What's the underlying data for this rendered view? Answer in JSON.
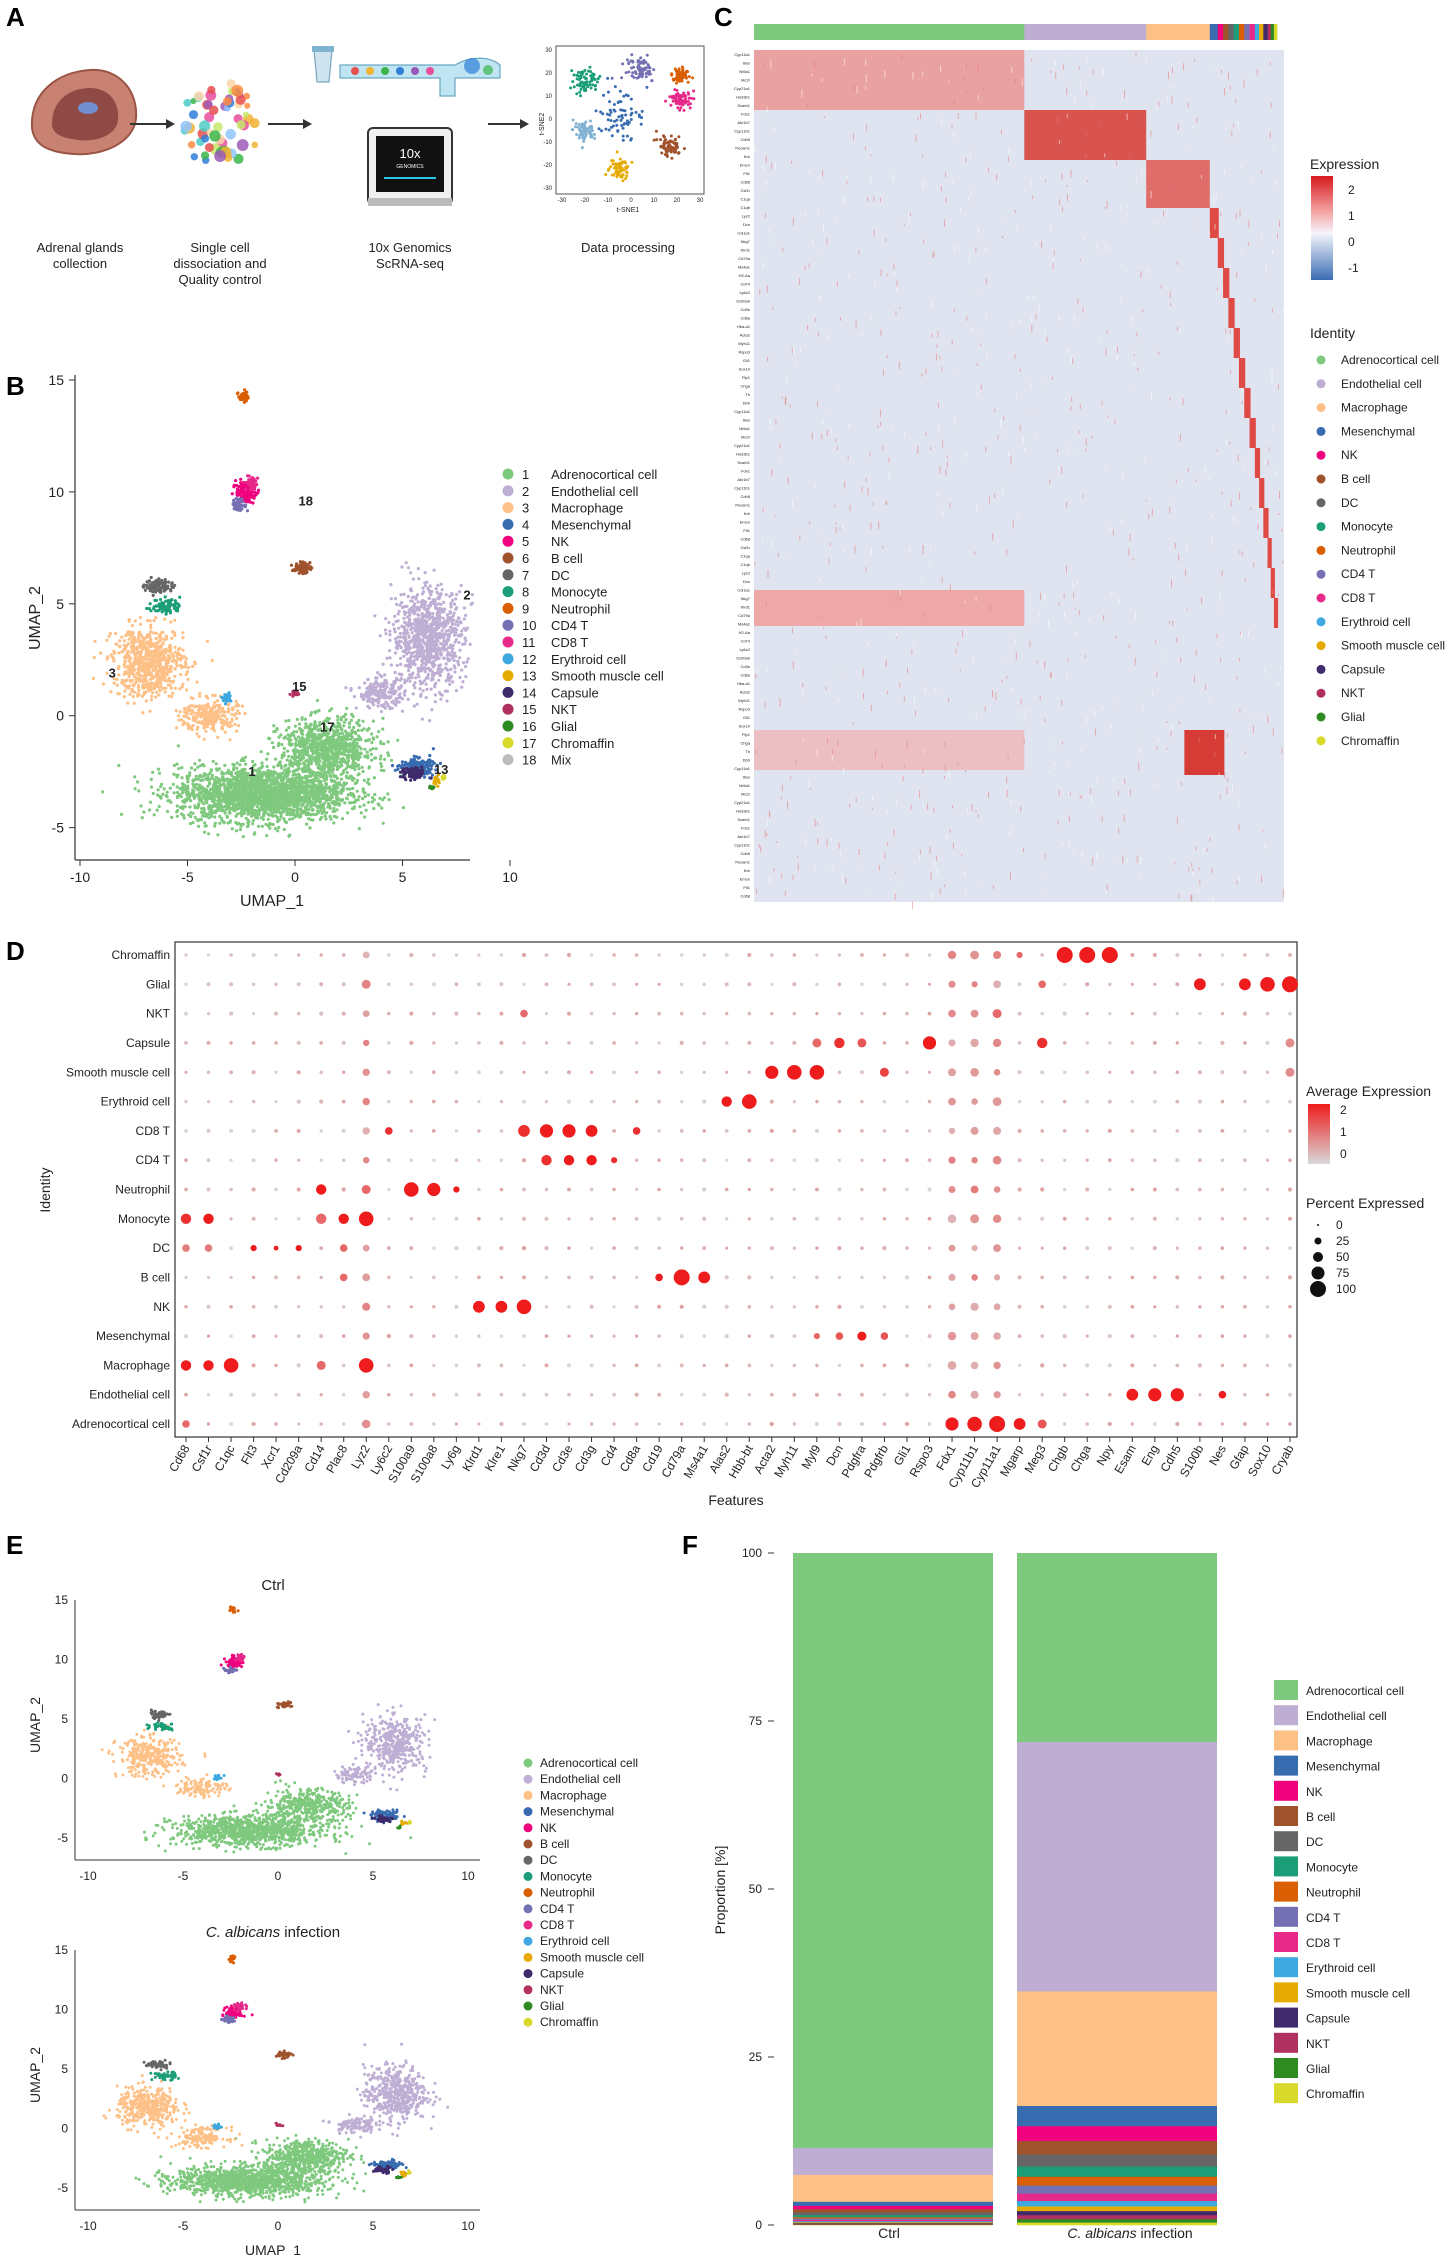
{
  "panels": {
    "A": {
      "label": "A",
      "steps": [
        {
          "line1": "Adrenal glands",
          "line2": "collection"
        },
        {
          "line1": "Single cell",
          "line2": "dissociation and",
          "line3": "Quality control"
        },
        {
          "line1": "10x Genomics",
          "line2": "ScRNA-seq"
        },
        {
          "line1": "Data processing"
        }
      ],
      "chip_text": "10x",
      "chip_sub": "GENOMICS",
      "tsne_xlabel": "t-SNE1",
      "tsne_ylabel": "t-SNE2",
      "tsne_xticks": [
        "-30",
        "-20",
        "-10",
        "0",
        "10",
        "20",
        "30"
      ],
      "tsne_yticks": [
        "30",
        "20",
        "10",
        "0",
        "-10",
        "-20",
        "-30"
      ]
    },
    "B": {
      "label": "B",
      "xlabel": "UMAP_1",
      "ylabel": "UMAP_2",
      "xticks": [
        "-10",
        "-5",
        "0",
        "5",
        "10"
      ],
      "yticks": [
        "15",
        "10",
        "5",
        "0",
        "-5"
      ],
      "cluster_labels": [
        "1",
        "2",
        "3",
        "13",
        "15",
        "17",
        "18"
      ],
      "legend": [
        {
          "num": "1",
          "name": "Adrenocortical cell",
          "color": "#7FC97F"
        },
        {
          "num": "2",
          "name": "Endothelial cell",
          "color": "#BEAED4"
        },
        {
          "num": "3",
          "name": "Macrophage",
          "color": "#FDC086"
        },
        {
          "num": "4",
          "name": "Mesenchymal",
          "color": "#386CB0"
        },
        {
          "num": "5",
          "name": "NK",
          "color": "#F0027F"
        },
        {
          "num": "6",
          "name": "B cell",
          "color": "#A0522D"
        },
        {
          "num": "7",
          "name": "DC",
          "color": "#666666"
        },
        {
          "num": "8",
          "name": "Monocyte",
          "color": "#1B9E77"
        },
        {
          "num": "9",
          "name": "Neutrophil",
          "color": "#D95F02"
        },
        {
          "num": "10",
          "name": "CD4 T",
          "color": "#7570B3"
        },
        {
          "num": "11",
          "name": "CD8 T",
          "color": "#E7298A"
        },
        {
          "num": "12",
          "name": "Erythroid cell",
          "color": "#3DA9E0"
        },
        {
          "num": "13",
          "name": "Smooth muscle cell",
          "color": "#E6AB02"
        },
        {
          "num": "14",
          "name": "Capsule",
          "color": "#3F2A6B"
        },
        {
          "num": "15",
          "name": "NKT",
          "color": "#B03060"
        },
        {
          "num": "16",
          "name": "Glial",
          "color": "#2E8B22"
        },
        {
          "num": "17",
          "name": "Chromaffin",
          "color": "#D9D92B"
        },
        {
          "num": "18",
          "name": "Mix",
          "color": "#BBBBBB"
        }
      ]
    },
    "C": {
      "label": "C",
      "legend_title": "Expression",
      "scale_ticks": [
        "2",
        "1",
        "0",
        "-1"
      ],
      "identity_title": "Identity",
      "identity": [
        {
          "name": "Adrenocortical cell",
          "color": "#7FC97F"
        },
        {
          "name": "Endothelial cell",
          "color": "#BEAED4"
        },
        {
          "name": "Macrophage",
          "color": "#FDC086"
        },
        {
          "name": "Mesenchymal",
          "color": "#386CB0"
        },
        {
          "name": "NK",
          "color": "#F0027F"
        },
        {
          "name": "B cell",
          "color": "#A0522D"
        },
        {
          "name": "DC",
          "color": "#666666"
        },
        {
          "name": "Monocyte",
          "color": "#1B9E77"
        },
        {
          "name": "Neutrophil",
          "color": "#D95F02"
        },
        {
          "name": "CD4 T",
          "color": "#7570B3"
        },
        {
          "name": "CD8 T",
          "color": "#E7298A"
        },
        {
          "name": "Erythroid cell",
          "color": "#3DA9E0"
        },
        {
          "name": "Smooth muscle cell",
          "color": "#E6AB02"
        },
        {
          "name": "Capsule",
          "color": "#3F2A6B"
        },
        {
          "name": "NKT",
          "color": "#B03060"
        },
        {
          "name": "Glial",
          "color": "#2E8B22"
        },
        {
          "name": "Chromaffin",
          "color": "#D9D92B"
        }
      ]
    },
    "D": {
      "label": "D",
      "xlabel": "Features",
      "ylabel": "Identity",
      "features": [
        "Cd68",
        "Csf1r",
        "C1qc",
        "Flt3",
        "Xcr1",
        "Cd209a",
        "Cd14",
        "Plac8",
        "Lyz2",
        "Ly6c2",
        "S100a9",
        "S100a8",
        "Ly6g",
        "Klrd1",
        "Klre1",
        "Nkg7",
        "Cd3d",
        "Cd3e",
        "Cd3g",
        "Cd4",
        "Cd8a",
        "Cd19",
        "Cd79a",
        "Ms4a1",
        "Alas2",
        "Hbb-bt",
        "Acta2",
        "Myh11",
        "Myl9",
        "Dcn",
        "Pdgfra",
        "Pdgfrb",
        "Gli1",
        "Rspo3",
        "Fdx1",
        "Cyp11b1",
        "Cyp11a1",
        "Mgarp",
        "Meg3",
        "Chgb",
        "Chga",
        "Npy",
        "Esam",
        "Eng",
        "Cdh5",
        "S100b",
        "Nes",
        "Gfap",
        "Sox10",
        "Cryab"
      ],
      "identities": [
        "Chromaffin",
        "Glial",
        "NKT",
        "Capsule",
        "Smooth muscle cell",
        "Erythroid cell",
        "CD8 T",
        "CD4 T",
        "Neutrophil",
        "Monocyte",
        "DC",
        "B cell",
        "NK",
        "Mesenchymal",
        "Macrophage",
        "Endothelial cell",
        "Adrenocortical cell"
      ],
      "avg_title": "Average Expression",
      "avg_ticks": [
        "2",
        "1",
        "0"
      ],
      "pct_title": "Percent Expressed",
      "pct_ticks": [
        "0",
        "25",
        "50",
        "75",
        "100"
      ]
    },
    "E": {
      "label": "E",
      "top_title": "Ctrl",
      "bottom_title_italic": "C. albicans",
      "bottom_title_rest": " infection",
      "xlabel": "UMAP_1",
      "ylabel": "UMAP_2",
      "xticks": [
        "-10",
        "-5",
        "0",
        "5",
        "10"
      ],
      "yticks": [
        "15",
        "10",
        "5",
        "0",
        "-5"
      ],
      "legend": [
        {
          "name": "Adrenocortical cell",
          "color": "#7FC97F"
        },
        {
          "name": "Endothelial cell",
          "color": "#BEAED4"
        },
        {
          "name": "Macrophage",
          "color": "#FDC086"
        },
        {
          "name": "Mesenchymal",
          "color": "#386CB0"
        },
        {
          "name": "NK",
          "color": "#F0027F"
        },
        {
          "name": "B cell",
          "color": "#A0522D"
        },
        {
          "name": "DC",
          "color": "#666666"
        },
        {
          "name": "Monocyte",
          "color": "#1B9E77"
        },
        {
          "name": "Neutrophil",
          "color": "#D95F02"
        },
        {
          "name": "CD4 T",
          "color": "#7570B3"
        },
        {
          "name": "CD8 T",
          "color": "#E7298A"
        },
        {
          "name": "Erythroid cell",
          "color": "#3DA9E0"
        },
        {
          "name": "Smooth muscle cell",
          "color": "#E6AB02"
        },
        {
          "name": "Capsule",
          "color": "#3F2A6B"
        },
        {
          "name": "NKT",
          "color": "#B03060"
        },
        {
          "name": "Glial",
          "color": "#2E8B22"
        },
        {
          "name": "Chromaffin",
          "color": "#D9D92B"
        }
      ]
    },
    "F": {
      "label": "F",
      "ylabel": "Proportion [%]",
      "yticks": [
        "100",
        "75",
        "50",
        "25",
        "0"
      ],
      "bar1_label": "Ctrl",
      "bar2_label_italic": "C. albicans",
      "bar2_label_rest": " infection"
    }
  },
  "chart_data": {
    "type": "bar",
    "title": "",
    "ylabel": "Proportion [%]",
    "ylim": [
      0,
      100
    ],
    "stacked": true,
    "categories": [
      "Ctrl",
      "C. albicans infection"
    ],
    "series": [
      {
        "name": "Adrenocortical cell",
        "color": "#7FC97F",
        "values": [
          88.5,
          28.0
        ]
      },
      {
        "name": "Endothelial cell",
        "color": "#BEAED4",
        "values": [
          4.0,
          37.0
        ]
      },
      {
        "name": "Macrophage",
        "color": "#FDC086",
        "values": [
          4.0,
          17.0
        ]
      },
      {
        "name": "Mesenchymal",
        "color": "#386CB0",
        "values": [
          0.6,
          3.0
        ]
      },
      {
        "name": "NK",
        "color": "#F0027F",
        "values": [
          0.5,
          2.2
        ]
      },
      {
        "name": "B cell",
        "color": "#A0522D",
        "values": [
          0.5,
          2.0
        ]
      },
      {
        "name": "DC",
        "color": "#666666",
        "values": [
          0.4,
          1.8
        ]
      },
      {
        "name": "Monocyte",
        "color": "#1B9E77",
        "values": [
          0.3,
          1.5
        ]
      },
      {
        "name": "Neutrophil",
        "color": "#D95F02",
        "values": [
          0.2,
          1.3
        ]
      },
      {
        "name": "CD4 T",
        "color": "#7570B3",
        "values": [
          0.2,
          1.2
        ]
      },
      {
        "name": "CD8 T",
        "color": "#E7298A",
        "values": [
          0.2,
          1.1
        ]
      },
      {
        "name": "Erythroid cell",
        "color": "#3DA9E0",
        "values": [
          0.15,
          0.8
        ]
      },
      {
        "name": "Smooth muscle cell",
        "color": "#E6AB02",
        "values": [
          0.15,
          0.7
        ]
      },
      {
        "name": "Capsule",
        "color": "#3F2A6B",
        "values": [
          0.1,
          0.6
        ]
      },
      {
        "name": "NKT",
        "color": "#B03060",
        "values": [
          0.1,
          0.6
        ]
      },
      {
        "name": "Glial",
        "color": "#2E8B22",
        "values": [
          0.05,
          0.5
        ]
      },
      {
        "name": "Chromaffin",
        "color": "#D9D92B",
        "values": [
          0.05,
          0.4
        ]
      }
    ]
  }
}
